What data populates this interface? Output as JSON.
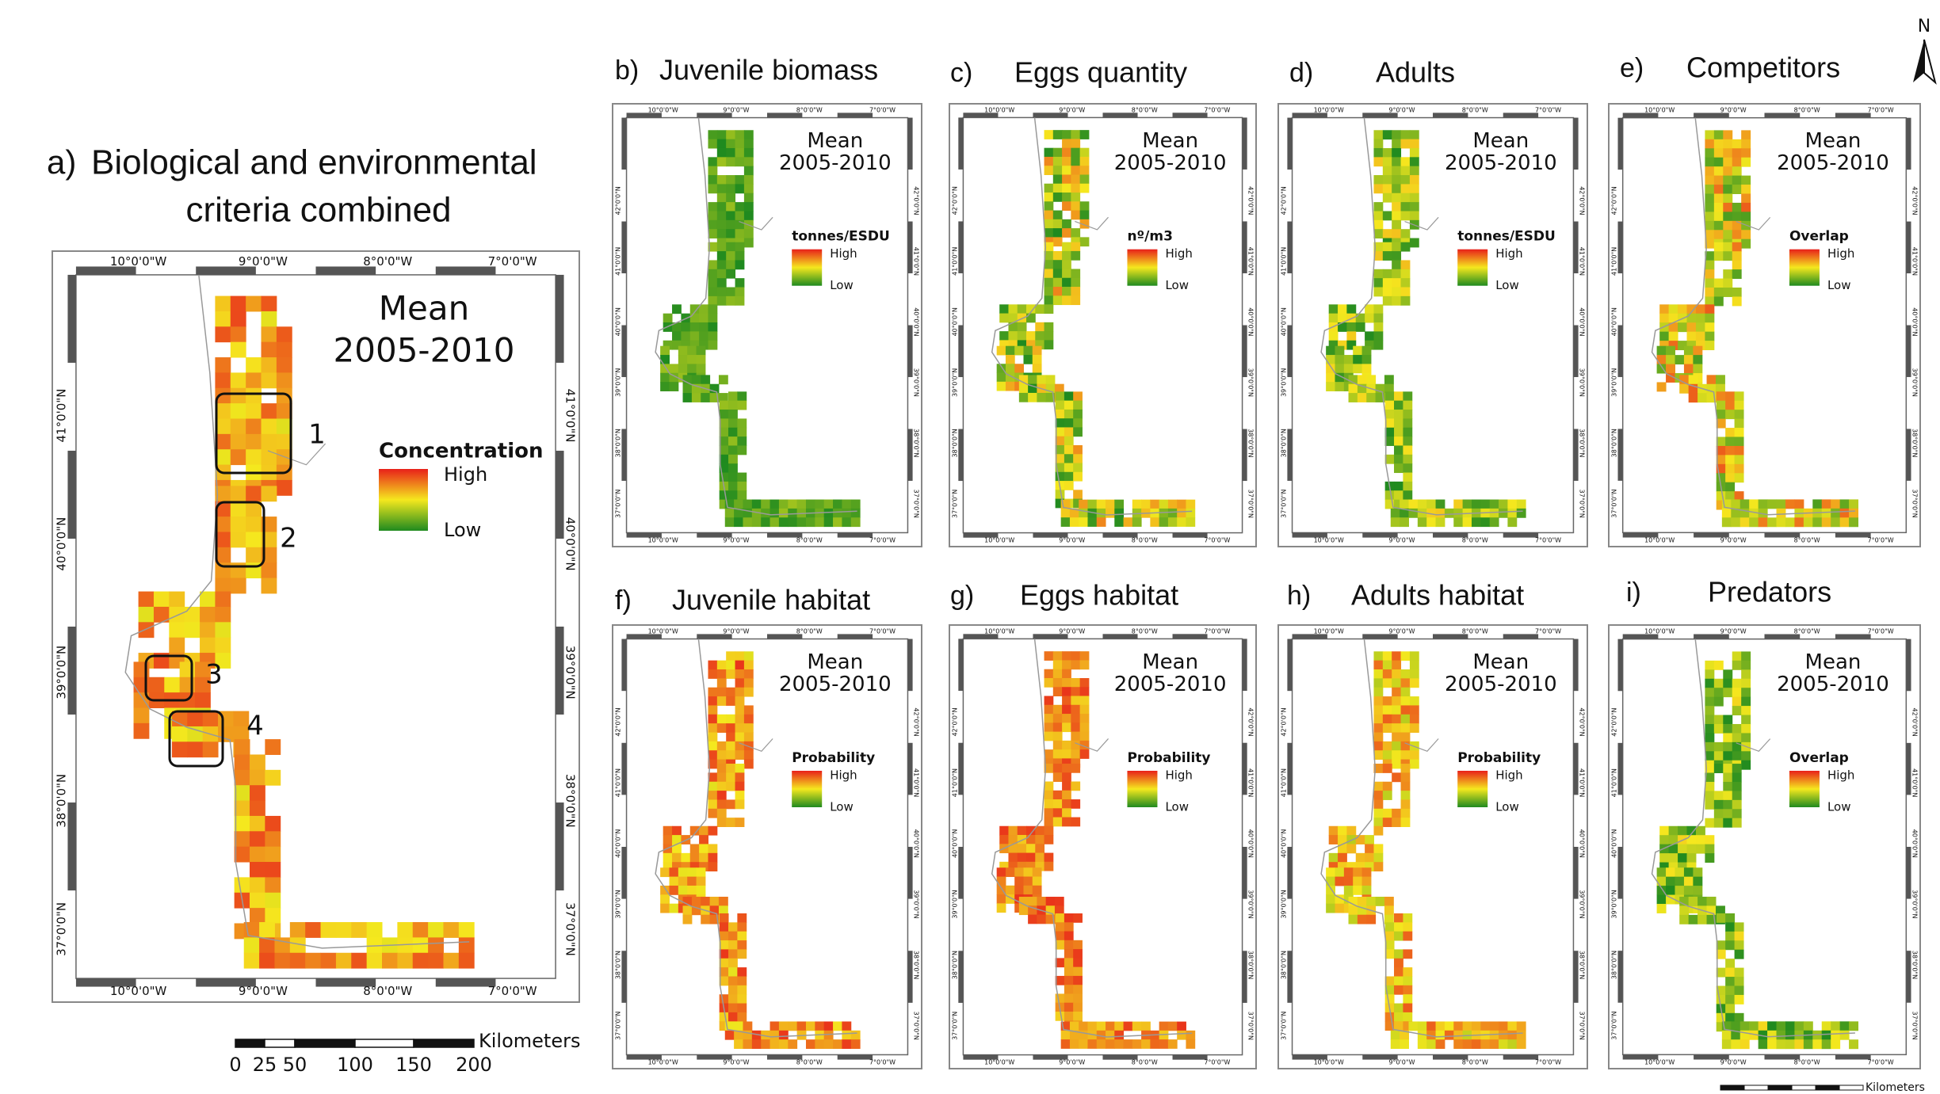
{
  "figure": {
    "north_label": "N",
    "panel_a": {
      "letter": "a)",
      "title_lines": [
        "Biological and environmental",
        "criteria combined"
      ],
      "mean": "Mean",
      "period": "2005-2010",
      "legend_title": "Concentration",
      "legend_high": "High",
      "legend_low": "Low",
      "lon_labels": [
        "10°0'0\"W",
        "9°0'0\"W",
        "8°0'0\"W",
        "7°0'0\"W"
      ],
      "lat_labels": [
        "41°0'0\"N",
        "40°0'0\"N",
        "39°0'0\"N",
        "38°0'0\"N",
        "37°0'0\"N"
      ],
      "areas": [
        "1",
        "2",
        "3",
        "4"
      ],
      "scale_labels": [
        "0",
        "25",
        "50",
        "100",
        "150",
        "200"
      ],
      "scale_unit": "Kilometers"
    },
    "panels": [
      {
        "letter": "b)",
        "title": "Juvenile biomass",
        "mean": "Mean",
        "period": "2005-2010",
        "legend_title": "tonnes/ESDU",
        "legend_high": "High",
        "legend_low": "Low"
      },
      {
        "letter": "c)",
        "title": "Eggs quantity",
        "mean": "Mean",
        "period": "2005-2010",
        "legend_title": "nº/m3",
        "legend_high": "High",
        "legend_low": "Low"
      },
      {
        "letter": "d)",
        "title": "Adults",
        "mean": "Mean",
        "period": "2005-2010",
        "legend_title": "tonnes/ESDU",
        "legend_high": "High",
        "legend_low": "Low"
      },
      {
        "letter": "e)",
        "title": "Competitors",
        "mean": "Mean",
        "period": "2005-2010",
        "legend_title": "Overlap",
        "legend_high": "High",
        "legend_low": "Low"
      },
      {
        "letter": "f)",
        "title": "Juvenile habitat",
        "mean": "Mean",
        "period": "2005-2010",
        "legend_title": "Probability",
        "legend_high": "High",
        "legend_low": "Low"
      },
      {
        "letter": "g)",
        "title": "Eggs habitat",
        "mean": "Mean",
        "period": "2005-2010",
        "legend_title": "Probability",
        "legend_high": "High",
        "legend_low": "Low"
      },
      {
        "letter": "h)",
        "title": "Adults habitat",
        "mean": "Mean",
        "period": "2005-2010",
        "legend_title": "Probability",
        "legend_high": "High",
        "legend_low": "Low"
      },
      {
        "letter": "i)",
        "title": "Predators",
        "mean": "Mean",
        "period": "2005-2010",
        "legend_title": "Overlap",
        "legend_high": "High",
        "legend_low": "Low"
      }
    ],
    "small_lon_labels": [
      "10°0'0\"W",
      "9°0'0\"W",
      "8°0'0\"W",
      "7°0'0\"W"
    ],
    "small_lat_labels": [
      "42°0'0\"N",
      "41°0'0\"N",
      "40°0'0\"N",
      "39°0'0\"N",
      "38°0'0\"N",
      "37°0'0\"N"
    ],
    "small_scale_unit": "Kilometers"
  }
}
